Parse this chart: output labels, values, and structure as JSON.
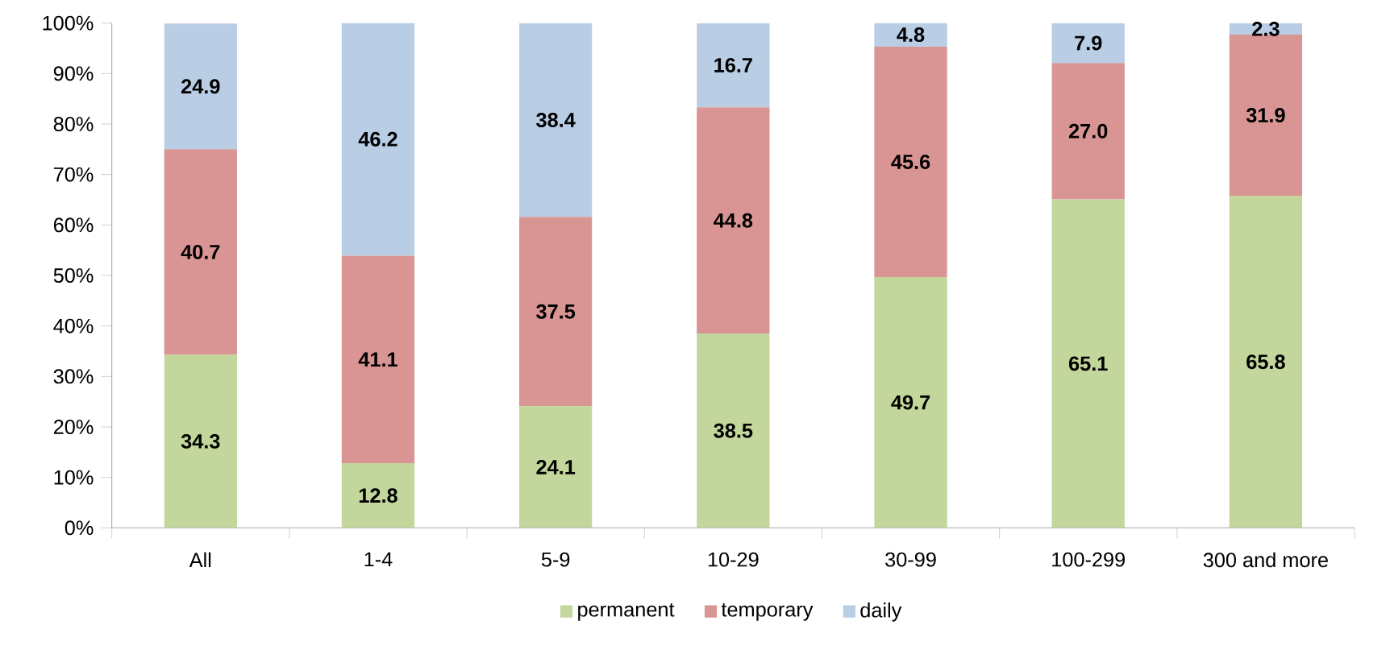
{
  "chart_data": {
    "type": "bar",
    "stacked": true,
    "categories": [
      "All",
      "1-4",
      "5-9",
      "10-29",
      "30-99",
      "100-299",
      "300 and more"
    ],
    "series": [
      {
        "name": "permanent",
        "color": "#c3d69b",
        "values": [
          34.3,
          12.8,
          24.1,
          38.5,
          49.7,
          65.1,
          65.8
        ],
        "value_labels": [
          "34.3",
          "12.8",
          "24.1",
          "38.5",
          "49.7",
          "65.1",
          "65.8"
        ]
      },
      {
        "name": "temporary",
        "color": "#d99594",
        "values": [
          40.7,
          41.1,
          37.5,
          44.8,
          45.6,
          27.0,
          31.9
        ],
        "value_labels": [
          "40.7",
          "41.1",
          "37.5",
          "44.8",
          "45.6",
          "27.0",
          "31.9"
        ]
      },
      {
        "name": "daily",
        "color": "#b9cde5",
        "values": [
          24.9,
          46.2,
          38.4,
          16.7,
          4.8,
          7.9,
          2.3
        ],
        "value_labels": [
          "24.9",
          "46.2",
          "38.4",
          "16.7",
          "4.8",
          "7.9",
          "2.3"
        ]
      }
    ],
    "ylim": [
      0,
      100
    ],
    "yticks": [
      {
        "value": 0,
        "label": "0%"
      },
      {
        "value": 10,
        "label": "10%"
      },
      {
        "value": 20,
        "label": "20%"
      },
      {
        "value": 30,
        "label": "30%"
      },
      {
        "value": 40,
        "label": "40%"
      },
      {
        "value": 50,
        "label": "50%"
      },
      {
        "value": 60,
        "label": "60%"
      },
      {
        "value": 70,
        "label": "70%"
      },
      {
        "value": 80,
        "label": "80%"
      },
      {
        "value": 90,
        "label": "90%"
      },
      {
        "value": 100,
        "label": "100%"
      }
    ],
    "legend": "bottom"
  }
}
